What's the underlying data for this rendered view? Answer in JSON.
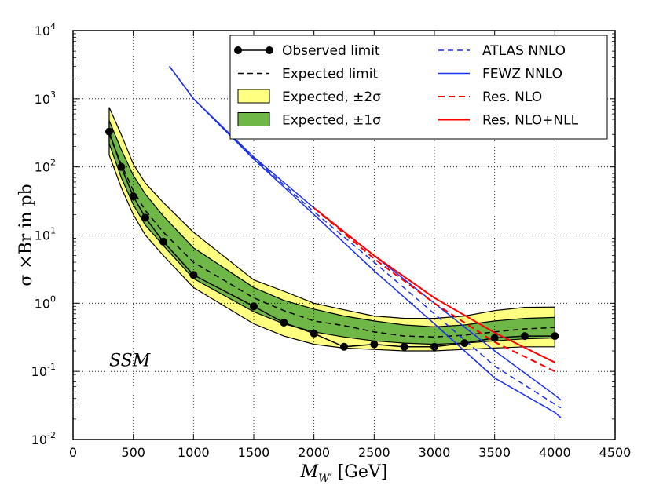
{
  "chart_data": {
    "type": "line",
    "title": "",
    "xlabel": "M_W' [GeV]",
    "ylabel": "σ ×Br in pb",
    "xlim": [
      0,
      4500
    ],
    "ylim": [
      0.01,
      10000
    ],
    "yscale": "log",
    "grid": true,
    "legend_position": "top-right",
    "x_ticks": [
      "0",
      "500",
      "1000",
      "1500",
      "2000",
      "2500",
      "3000",
      "3500",
      "4000",
      "4500"
    ],
    "y_ticks": [
      {
        "base": "10",
        "exp": "-2"
      },
      {
        "base": "10",
        "exp": "-1"
      },
      {
        "base": "10",
        "exp": "0"
      },
      {
        "base": "10",
        "exp": "1"
      },
      {
        "base": "10",
        "exp": "2"
      },
      {
        "base": "10",
        "exp": "3"
      },
      {
        "base": "10",
        "exp": "4"
      }
    ],
    "annotation": "SSM",
    "observed": {
      "name": "Observed limit",
      "x": [
        300,
        400,
        500,
        600,
        750,
        1000,
        1500,
        1750,
        2000,
        2250,
        2500,
        2750,
        3000,
        3250,
        3500,
        3750,
        4000
      ],
      "y": [
        330,
        100,
        37,
        18,
        8,
        2.6,
        0.9,
        0.52,
        0.36,
        0.23,
        0.25,
        0.23,
        0.23,
        0.26,
        0.31,
        0.33,
        0.33
      ]
    },
    "expected": {
      "name": "Expected limit",
      "x": [
        300,
        400,
        500,
        600,
        750,
        1000,
        1500,
        1750,
        2000,
        2250,
        2500,
        2750,
        3000,
        3250,
        3500,
        3750,
        4000
      ],
      "y": [
        300,
        110,
        45,
        23,
        11,
        4.0,
        1.2,
        0.78,
        0.55,
        0.47,
        0.38,
        0.33,
        0.32,
        0.34,
        0.38,
        0.42,
        0.44
      ]
    },
    "band_2sigma": {
      "name": "Expected, ±2σ",
      "x": [
        300,
        400,
        500,
        600,
        750,
        1000,
        1500,
        1750,
        2000,
        2250,
        2500,
        2750,
        3000,
        3250,
        3500,
        3750,
        4000
      ],
      "upper": [
        750,
        300,
        110,
        58,
        30,
        11,
        2.2,
        1.5,
        1.0,
        0.8,
        0.65,
        0.6,
        0.6,
        0.65,
        0.78,
        0.87,
        0.88
      ],
      "lower": [
        150,
        50,
        20,
        10,
        5,
        1.7,
        0.5,
        0.33,
        0.25,
        0.22,
        0.21,
        0.2,
        0.2,
        0.21,
        0.22,
        0.23,
        0.23
      ]
    },
    "band_1sigma": {
      "name": "Expected, ±1σ",
      "x": [
        300,
        400,
        500,
        600,
        750,
        1000,
        1500,
        1750,
        2000,
        2250,
        2500,
        2750,
        3000,
        3250,
        3500,
        3750,
        4000
      ],
      "upper": [
        480,
        180,
        75,
        40,
        19,
        6.5,
        1.7,
        1.1,
        0.82,
        0.65,
        0.55,
        0.48,
        0.45,
        0.48,
        0.55,
        0.6,
        0.62
      ],
      "lower": [
        220,
        70,
        28,
        14,
        7,
        2.3,
        0.75,
        0.5,
        0.38,
        0.32,
        0.28,
        0.26,
        0.25,
        0.26,
        0.28,
        0.3,
        0.31
      ]
    },
    "theory": [
      {
        "name": "FEWZ NNLO upper",
        "kind": "fewz",
        "x": [
          800,
          1000,
          1500,
          2000,
          2500,
          3000,
          3500,
          4000,
          4050
        ],
        "y": [
          3000,
          1000,
          140,
          25,
          5,
          1.0,
          0.2,
          0.045,
          0.038
        ]
      },
      {
        "name": "FEWZ NNLO lower",
        "kind": "fewz",
        "x": [
          800,
          1000,
          1500,
          2000,
          2500,
          3000,
          3500,
          4000,
          4050
        ],
        "y": [
          3000,
          1000,
          130,
          20,
          3,
          0.5,
          0.08,
          0.025,
          0.021
        ]
      },
      {
        "name": "ATLAS NNLO",
        "kind": "atlas",
        "x": [
          800,
          1000,
          1500,
          2000,
          2500,
          3000,
          3500,
          4000,
          4050
        ],
        "y": [
          3000,
          1000,
          135,
          22,
          4,
          0.7,
          0.12,
          0.033,
          0.029
        ]
      },
      {
        "name": "Res. NLO",
        "kind": "resnlo",
        "x": [
          2000,
          2500,
          3000,
          3500,
          4000
        ],
        "y": [
          25,
          4.5,
          1.0,
          0.27,
          0.1
        ]
      },
      {
        "name": "Res. NLO+NLL",
        "kind": "resnll",
        "x": [
          2000,
          2500,
          3000,
          3500,
          4000
        ],
        "y": [
          25,
          5,
          1.2,
          0.37,
          0.135
        ]
      }
    ],
    "legend": [
      {
        "label": "Observed limit",
        "kind": "observed"
      },
      {
        "label": "Expected limit",
        "kind": "expected"
      },
      {
        "label": "Expected, ±2σ",
        "kind": "band2"
      },
      {
        "label": "Expected, ±1σ",
        "kind": "band1"
      },
      {
        "label": "ATLAS NNLO",
        "kind": "atlas"
      },
      {
        "label": "FEWZ NNLO",
        "kind": "fewz"
      },
      {
        "label": "Res. NLO",
        "kind": "resnlo"
      },
      {
        "label": "Res. NLO+NLL",
        "kind": "resnll"
      }
    ],
    "colors": {
      "band2": "#ffff80",
      "band1": "#6fb847",
      "observed": "#000000",
      "atlas": "#1c30e8",
      "fewz": "#1c30e8",
      "resnlo": "#ff0000",
      "resnll": "#ff0000"
    }
  }
}
